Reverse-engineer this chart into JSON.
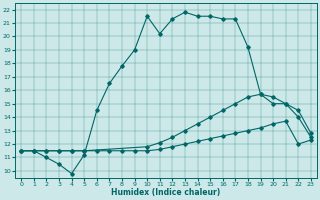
{
  "xlabel": "Humidex (Indice chaleur)",
  "bg_color": "#cce8e8",
  "line_color": "#006666",
  "xlim": [
    -0.5,
    23.5
  ],
  "ylim": [
    9.5,
    22.5
  ],
  "xticks": [
    0,
    1,
    2,
    3,
    4,
    5,
    6,
    7,
    8,
    9,
    10,
    11,
    12,
    13,
    14,
    15,
    16,
    17,
    18,
    19,
    20,
    21,
    22,
    23
  ],
  "yticks": [
    10,
    11,
    12,
    13,
    14,
    15,
    16,
    17,
    18,
    19,
    20,
    21,
    22
  ],
  "line1_x": [
    0,
    1,
    2,
    3,
    4,
    5,
    6,
    7,
    8,
    9,
    10,
    11,
    12,
    13,
    14,
    15,
    16,
    17,
    18,
    19,
    20,
    21,
    22,
    23
  ],
  "line1_y": [
    11.5,
    11.5,
    11.5,
    11.5,
    11.5,
    11.5,
    11.5,
    11.5,
    11.5,
    11.5,
    11.5,
    11.6,
    11.8,
    12.0,
    12.2,
    12.4,
    12.6,
    12.8,
    13.0,
    13.2,
    13.5,
    13.7,
    12.0,
    12.3
  ],
  "line2_x": [
    0,
    1,
    2,
    3,
    4,
    5,
    10,
    11,
    12,
    13,
    14,
    15,
    16,
    17,
    18,
    19,
    20,
    21,
    22,
    23
  ],
  "line2_y": [
    11.5,
    11.5,
    11.5,
    11.5,
    11.5,
    11.5,
    11.8,
    12.1,
    12.5,
    13.0,
    13.5,
    14.0,
    14.5,
    15.0,
    15.5,
    15.7,
    15.5,
    15.0,
    14.0,
    12.5
  ],
  "line3_x": [
    0,
    1,
    2,
    3,
    4,
    5,
    6,
    7,
    8,
    9,
    10,
    11,
    12,
    13,
    14,
    15,
    16,
    17,
    18,
    19,
    20,
    21,
    22,
    23
  ],
  "line3_y": [
    11.5,
    11.5,
    11.0,
    10.5,
    9.8,
    11.2,
    14.5,
    16.5,
    17.8,
    19.0,
    21.5,
    20.2,
    21.3,
    21.8,
    21.5,
    21.5,
    21.3,
    21.3,
    19.2,
    15.7,
    15.0,
    15.0,
    14.5,
    12.8
  ]
}
